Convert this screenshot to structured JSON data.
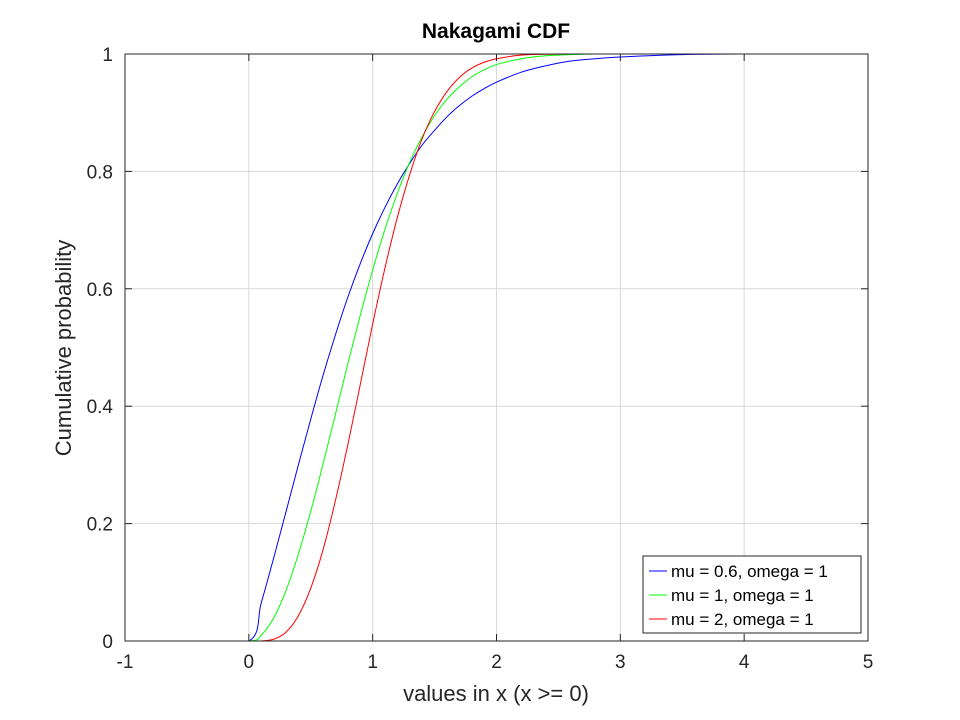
{
  "chart_data": {
    "type": "line",
    "title": "Nakagami CDF",
    "xlabel": "values in x (x >= 0)",
    "ylabel": "Cumulative probability",
    "xlim": [
      -1,
      5
    ],
    "ylim": [
      0,
      1
    ],
    "grid": true,
    "legend_position": "bottom-right",
    "x_ticks": [
      "-1",
      "0",
      "1",
      "2",
      "3",
      "4",
      "5"
    ],
    "y_ticks": [
      "0",
      "0.2",
      "0.4",
      "0.6",
      "0.8",
      "1"
    ],
    "x": [
      -1,
      -0.5,
      0,
      0.1,
      0.2,
      0.3,
      0.4,
      0.5,
      0.6,
      0.7,
      0.8,
      0.9,
      1.0,
      1.1,
      1.2,
      1.3,
      1.4,
      1.5,
      1.6,
      1.7,
      1.8,
      1.9,
      2.0,
      2.2,
      2.4,
      2.6,
      2.8,
      3.0,
      3.5,
      4.0,
      5.0
    ],
    "series": [
      {
        "name": "mu = 0.6, omega = 1",
        "color": "#0000ff",
        "values": [
          0,
          0,
          0,
          0.065,
          0.141,
          0.22,
          0.3,
          0.378,
          0.453,
          0.522,
          0.586,
          0.643,
          0.694,
          0.739,
          0.779,
          0.814,
          0.845,
          0.87,
          0.893,
          0.912,
          0.928,
          0.941,
          0.952,
          0.969,
          0.98,
          0.988,
          0.992,
          0.995,
          0.999,
          1.0,
          1.0
        ]
      },
      {
        "name": "mu = 1, omega = 1",
        "color": "#00ff00",
        "values": [
          0,
          0,
          0,
          0.01,
          0.039,
          0.086,
          0.148,
          0.221,
          0.302,
          0.387,
          0.473,
          0.555,
          0.632,
          0.702,
          0.763,
          0.816,
          0.859,
          0.895,
          0.923,
          0.944,
          0.961,
          0.973,
          0.982,
          0.992,
          0.997,
          0.999,
          1.0,
          1.0,
          1.0,
          1.0,
          1.0
        ]
      },
      {
        "name": "mu = 2, omega = 1",
        "color": "#ff0000",
        "values": [
          0,
          0,
          0,
          0.0002,
          0.003,
          0.015,
          0.043,
          0.09,
          0.156,
          0.24,
          0.335,
          0.437,
          0.54,
          0.636,
          0.722,
          0.795,
          0.856,
          0.902,
          0.936,
          0.96,
          0.976,
          0.986,
          0.992,
          0.998,
          0.9995,
          1.0,
          1.0,
          1.0,
          1.0,
          1.0,
          1.0
        ]
      }
    ]
  }
}
